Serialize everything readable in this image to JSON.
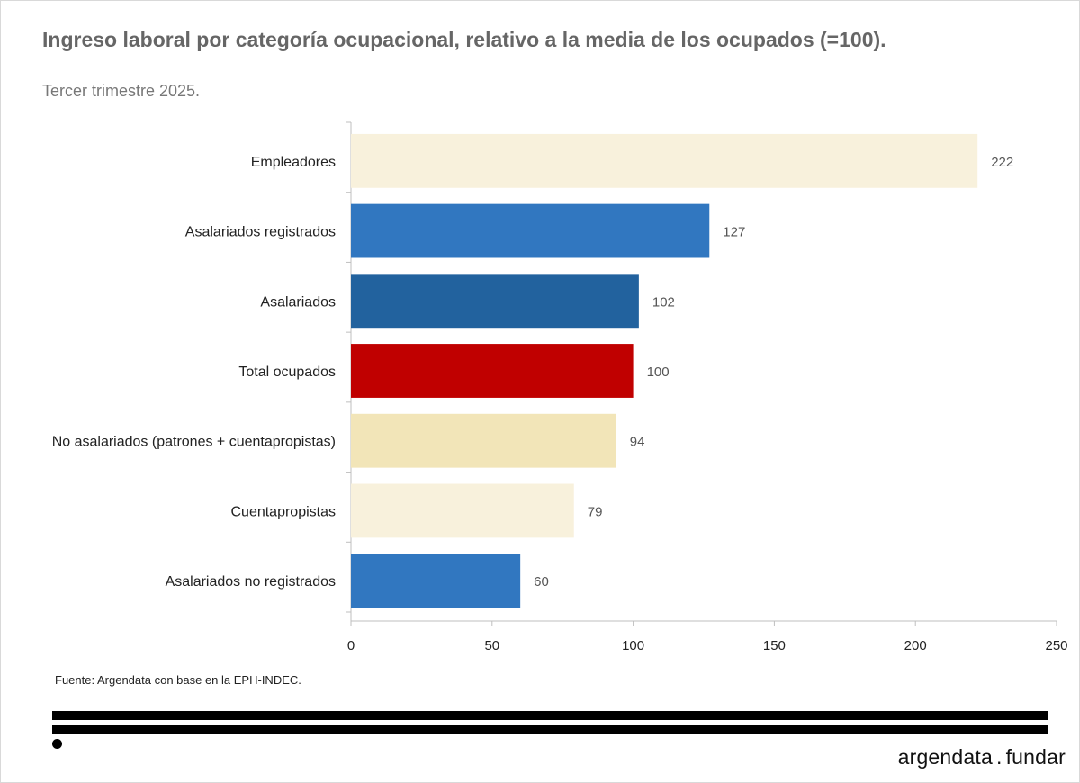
{
  "header": {
    "title": "Ingreso laboral por categoría ocupacional, relativo a la media de los ocupados (=100).",
    "subtitle": "Tercer trimestre 2025."
  },
  "footer": {
    "source": "Fuente: Argendata con base en la EPH-INDEC.",
    "brand_left": "argendata",
    "brand_sep": ".",
    "brand_right": "fundar"
  },
  "chart_data": {
    "type": "bar",
    "orientation": "horizontal",
    "title": "Ingreso laboral por categoría ocupacional, relativo a la media de los ocupados (=100).",
    "subtitle": "Tercer trimestre 2025.",
    "xlabel": "",
    "ylabel": "",
    "categories": [
      "Empleadores",
      "Asalariados registrados",
      "Asalariados",
      "Total ocupados",
      "No asalariados (patrones + cuentapropistas)",
      "Cuentapropistas",
      "Asalariados no registrados"
    ],
    "values": [
      222,
      127,
      102,
      100,
      94,
      79,
      60
    ],
    "colors": [
      "#f8f1dc",
      "#3177c0",
      "#22629e",
      "#c00000",
      "#f2e5b8",
      "#f8f1dc",
      "#3177c0"
    ],
    "xlim": [
      0,
      250
    ],
    "xticks": [
      0,
      50,
      100,
      150,
      200,
      250
    ],
    "grid": false,
    "data_labels": true
  }
}
